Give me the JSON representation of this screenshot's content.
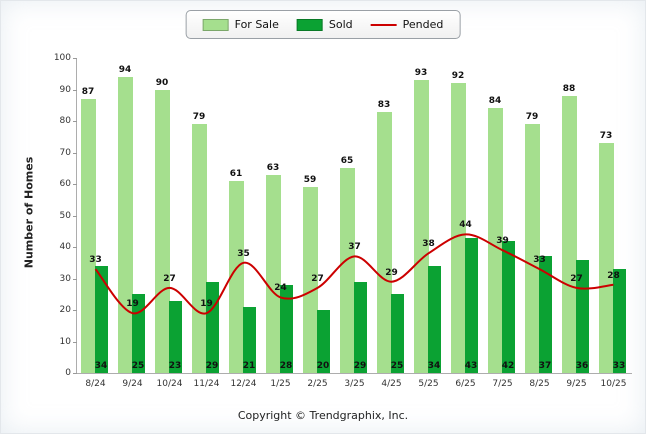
{
  "chart_data": {
    "type": "bar",
    "title": "",
    "categories": [
      "8/24",
      "9/24",
      "10/24",
      "11/24",
      "12/24",
      "1/25",
      "2/25",
      "3/25",
      "4/25",
      "5/25",
      "6/25",
      "7/25",
      "8/25",
      "9/25",
      "10/25"
    ],
    "series": [
      {
        "name": "For Sale",
        "type": "bar",
        "color": "#a5df8e",
        "values": [
          87,
          94,
          90,
          79,
          61,
          63,
          59,
          65,
          83,
          93,
          92,
          84,
          79,
          88,
          73
        ]
      },
      {
        "name": "Sold",
        "type": "bar",
        "color": "#0ba233",
        "values": [
          34,
          25,
          23,
          29,
          21,
          28,
          20,
          29,
          25,
          34,
          43,
          42,
          37,
          36,
          33
        ]
      },
      {
        "name": "Pended",
        "type": "line",
        "color": "#cc0000",
        "values": [
          33,
          19,
          27,
          19,
          35,
          24,
          27,
          37,
          29,
          38,
          44,
          39,
          33,
          27,
          28
        ]
      }
    ],
    "xlabel": "",
    "ylabel": "Number of Homes",
    "ylim": [
      0,
      100
    ],
    "yticks": [
      0,
      10,
      20,
      30,
      40,
      50,
      60,
      70,
      80,
      90,
      100
    ],
    "grid": false,
    "legend_position": "top"
  },
  "footer": {
    "copyright": "Copyright © Trendgraphix, Inc."
  }
}
